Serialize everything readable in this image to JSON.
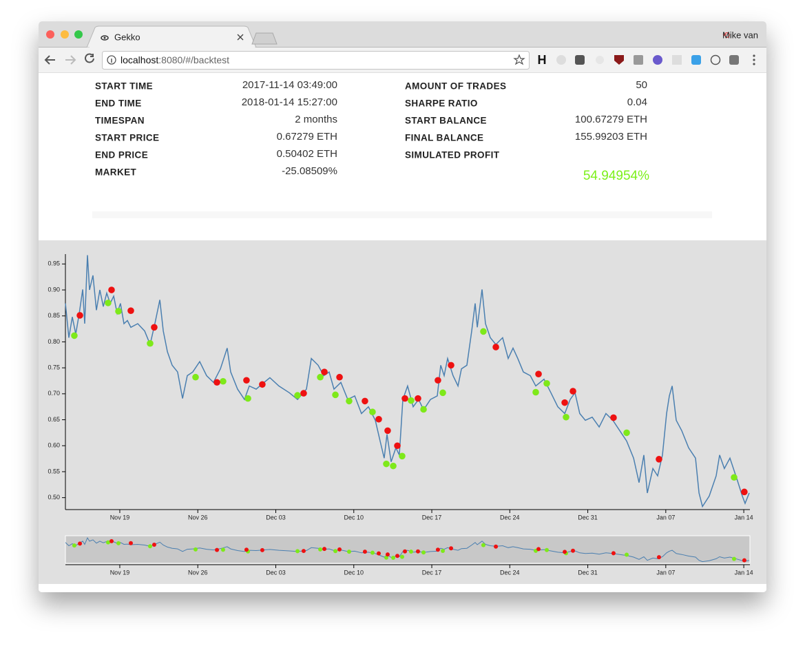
{
  "browser": {
    "tab_title": "Gekko",
    "url_host": "localhost",
    "url_rest": ":8080/#/backtest",
    "profile": "Mike van",
    "toolbar_letter": "H"
  },
  "summary": {
    "left": [
      {
        "label": "START TIME",
        "value": "2017-11-14 03:49:00"
      },
      {
        "label": "END TIME",
        "value": "2018-01-14 15:27:00"
      },
      {
        "label": "TIMESPAN",
        "value": "2 months"
      },
      {
        "label": "START PRICE",
        "value": "0.67279 ETH"
      },
      {
        "label": "END PRICE",
        "value": "0.50402 ETH"
      },
      {
        "label": "MARKET",
        "value": "-25.08509%"
      }
    ],
    "right": [
      {
        "label": "AMOUNT OF TRADES",
        "value": "50"
      },
      {
        "label": "SHARPE RATIO",
        "value": "0.04"
      },
      {
        "label": "START BALANCE",
        "value": "100.67279 ETH"
      },
      {
        "label": "FINAL BALANCE",
        "value": "155.99203 ETH"
      },
      {
        "label": "SIMULATED PROFIT"
      }
    ],
    "profit": "54.94954%"
  },
  "chart_data": {
    "type": "line",
    "color": "#4a7fb0",
    "xlim": [
      0.12,
      61.55
    ],
    "xticks": [
      {
        "value": 5,
        "label": "Nov 19"
      },
      {
        "value": 12,
        "label": "Nov 26"
      },
      {
        "value": 19,
        "label": "Dec 03"
      },
      {
        "value": 26,
        "label": "Dec 10"
      },
      {
        "value": 33,
        "label": "Dec 17"
      },
      {
        "value": 40,
        "label": "Dec 24"
      },
      {
        "value": 47,
        "label": "Dec 31"
      },
      {
        "value": 54,
        "label": "Jan 07"
      },
      {
        "value": 61,
        "label": "Jan 14"
      }
    ],
    "ylim": [
      0.477,
      0.969
    ],
    "yticks": [
      {
        "value": 0.5,
        "label": "0.50"
      },
      0.55,
      {
        "value": 0.6,
        "label": "0.60"
      },
      0.65,
      {
        "value": 0.7,
        "label": "0.70"
      },
      0.75,
      {
        "value": 0.8,
        "label": "0.80"
      },
      0.85,
      {
        "value": 0.9,
        "label": "0.90"
      },
      0.95
    ],
    "x": [
      0.12,
      0.43,
      0.74,
      1.05,
      1.36,
      1.67,
      1.85,
      2.1,
      2.28,
      2.59,
      2.9,
      3.21,
      3.52,
      3.83,
      4.14,
      4.45,
      4.76,
      5.06,
      5.37,
      5.68,
      5.99,
      6.61,
      7.23,
      7.72,
      8.15,
      8.59,
      8.9,
      9.27,
      9.7,
      10.19,
      10.63,
      11.06,
      11.55,
      12.17,
      12.79,
      13.41,
      14.03,
      14.64,
      14.95,
      15.57,
      16.19,
      16.62,
      17.24,
      17.73,
      18.47,
      19.28,
      20.21,
      20.95,
      21.75,
      22.19,
      22.8,
      23.3,
      23.79,
      24.22,
      24.84,
      25.46,
      26.08,
      26.69,
      27.31,
      27.93,
      28.36,
      28.73,
      28.98,
      29.35,
      29.78,
      30.09,
      30.4,
      30.83,
      31.33,
      31.82,
      32.26,
      32.88,
      33.49,
      33.8,
      34.11,
      34.42,
      34.91,
      35.35,
      35.66,
      36.15,
      36.58,
      36.89,
      37.08,
      37.51,
      37.82,
      38.25,
      38.75,
      39.36,
      39.86,
      40.29,
      40.72,
      41.22,
      41.84,
      42.33,
      43.07,
      43.69,
      44.31,
      44.93,
      45.42,
      45.85,
      46.28,
      46.78,
      47.4,
      48.02,
      48.63,
      49.25,
      49.87,
      50.49,
      51.11,
      51.6,
      52.03,
      52.34,
      52.84,
      53.27,
      53.7,
      54.07,
      54.32,
      54.57,
      54.94,
      55.43,
      56.05,
      56.67,
      56.98,
      57.29,
      57.9,
      58.52,
      58.83,
      59.26,
      59.76,
      60.38,
      60.87,
      61.12,
      61.49
    ],
    "values": [
      0.874,
      0.808,
      0.848,
      0.815,
      0.855,
      0.901,
      0.835,
      0.967,
      0.9,
      0.928,
      0.861,
      0.9,
      0.868,
      0.894,
      0.874,
      0.888,
      0.855,
      0.874,
      0.835,
      0.841,
      0.828,
      0.835,
      0.821,
      0.795,
      0.835,
      0.881,
      0.821,
      0.781,
      0.755,
      0.742,
      0.691,
      0.735,
      0.742,
      0.762,
      0.735,
      0.722,
      0.748,
      0.788,
      0.742,
      0.709,
      0.689,
      0.715,
      0.709,
      0.718,
      0.731,
      0.715,
      0.702,
      0.689,
      0.709,
      0.768,
      0.755,
      0.735,
      0.742,
      0.709,
      0.722,
      0.689,
      0.696,
      0.662,
      0.675,
      0.649,
      0.609,
      0.576,
      0.622,
      0.569,
      0.596,
      0.582,
      0.689,
      0.715,
      0.675,
      0.689,
      0.669,
      0.689,
      0.696,
      0.755,
      0.735,
      0.768,
      0.735,
      0.715,
      0.748,
      0.755,
      0.821,
      0.874,
      0.828,
      0.901,
      0.835,
      0.808,
      0.795,
      0.808,
      0.768,
      0.788,
      0.768,
      0.742,
      0.735,
      0.715,
      0.728,
      0.702,
      0.675,
      0.662,
      0.689,
      0.702,
      0.662,
      0.649,
      0.655,
      0.636,
      0.662,
      0.649,
      0.629,
      0.609,
      0.576,
      0.529,
      0.582,
      0.509,
      0.556,
      0.542,
      0.582,
      0.662,
      0.696,
      0.715,
      0.649,
      0.629,
      0.596,
      0.576,
      0.509,
      0.483,
      0.503,
      0.542,
      0.582,
      0.556,
      0.576,
      0.536,
      0.503,
      0.489,
      0.509
    ],
    "markers": [
      {
        "color": "#7ee91a",
        "x": [
          0.92,
          3.95,
          4.88,
          7.72,
          11.8,
          14.27,
          16.5,
          20.95,
          22.99,
          24.35,
          25.58,
          27.68,
          28.92,
          29.54,
          30.34,
          31.14,
          32.26,
          33.99,
          37.63,
          42.33,
          43.32,
          45.05,
          50.49,
          60.13
        ],
        "values": [
          0.812,
          0.875,
          0.859,
          0.797,
          0.732,
          0.724,
          0.691,
          0.697,
          0.732,
          0.698,
          0.686,
          0.665,
          0.565,
          0.561,
          0.58,
          0.687,
          0.67,
          0.702,
          0.82,
          0.703,
          0.72,
          0.655,
          0.625,
          0.539
        ]
      },
      {
        "color": "#ee1111",
        "x": [
          1.42,
          4.26,
          5.99,
          8.09,
          13.72,
          16.37,
          17.79,
          21.5,
          23.36,
          24.72,
          27.0,
          28.24,
          29.04,
          29.91,
          30.59,
          31.76,
          33.55,
          34.73,
          38.75,
          42.58,
          44.93,
          45.67,
          49.31,
          53.39,
          61.05
        ],
        "values": [
          0.851,
          0.9,
          0.86,
          0.828,
          0.722,
          0.726,
          0.718,
          0.701,
          0.742,
          0.732,
          0.686,
          0.651,
          0.629,
          0.6,
          0.691,
          0.691,
          0.726,
          0.755,
          0.79,
          0.738,
          0.683,
          0.705,
          0.654,
          0.574,
          0.511
        ]
      }
    ]
  }
}
